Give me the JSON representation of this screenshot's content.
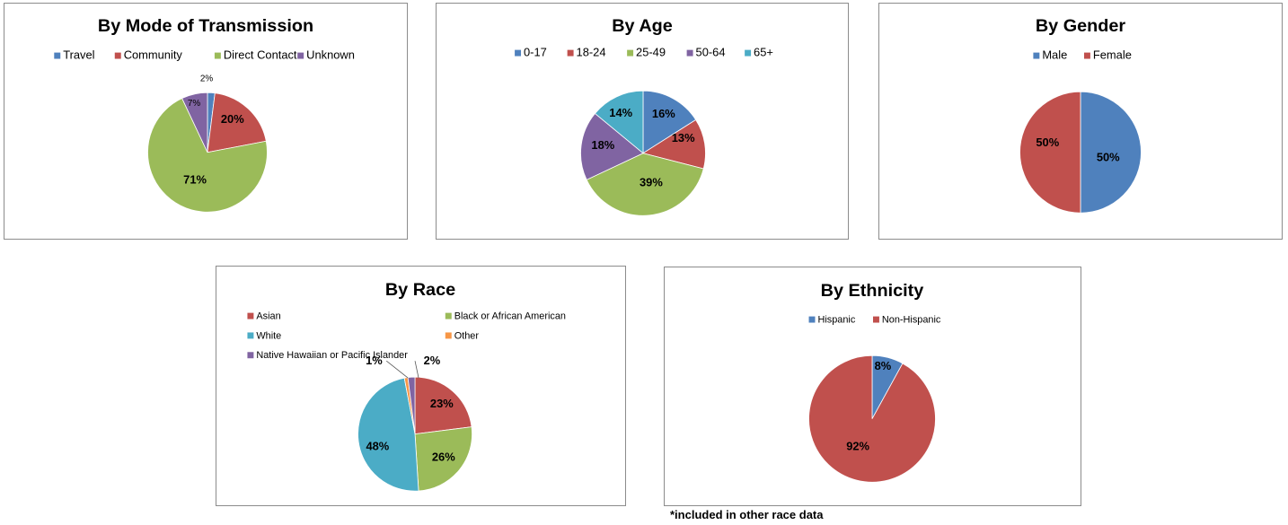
{
  "colors": {
    "blue": "#4F81BD",
    "red": "#C0504D",
    "green": "#9BBB59",
    "purple": "#8064A2",
    "teal": "#4BACC6",
    "orange": "#F79646"
  },
  "footnote": "*included in other race data",
  "chart_data": [
    {
      "type": "pie",
      "title": "By Mode of Transmission",
      "legend_position": "top",
      "slices": [
        {
          "label": "Travel",
          "value": 2,
          "display": "2%",
          "color": "#4F81BD"
        },
        {
          "label": "Community",
          "value": 20,
          "display": "20%",
          "color": "#C0504D"
        },
        {
          "label": "Direct Contact",
          "value": 71,
          "display": "71%",
          "color": "#9BBB59"
        },
        {
          "label": "Unknown",
          "value": 7,
          "display": "7%",
          "color": "#8064A2"
        }
      ]
    },
    {
      "type": "pie",
      "title": "By Age",
      "legend_position": "top",
      "slices": [
        {
          "label": "0-17",
          "value": 16,
          "display": "16%",
          "color": "#4F81BD"
        },
        {
          "label": "18-24",
          "value": 13,
          "display": "13%",
          "color": "#C0504D"
        },
        {
          "label": "25-49",
          "value": 39,
          "display": "39%",
          "color": "#9BBB59"
        },
        {
          "label": "50-64",
          "value": 18,
          "display": "18%",
          "color": "#8064A2"
        },
        {
          "label": "65+",
          "value": 14,
          "display": "14%",
          "color": "#4BACC6"
        }
      ]
    },
    {
      "type": "pie",
      "title": "By Gender",
      "legend_position": "top",
      "slices": [
        {
          "label": "Male",
          "value": 50,
          "display": "50%",
          "color": "#4F81BD"
        },
        {
          "label": "Female",
          "value": 50,
          "display": "50%",
          "color": "#C0504D"
        }
      ]
    },
    {
      "type": "pie",
      "title": "By Race",
      "legend_position": "top",
      "slices": [
        {
          "label": "Asian",
          "value": 23,
          "display": "23%",
          "color": "#C0504D"
        },
        {
          "label": "Black or African American",
          "value": 26,
          "display": "26%",
          "color": "#9BBB59"
        },
        {
          "label": "White",
          "value": 48,
          "display": "48%",
          "color": "#4BACC6"
        },
        {
          "label": "Other",
          "value": 1,
          "display": "1%",
          "color": "#F79646"
        },
        {
          "label": "Native Hawaiian or Pacific Islander",
          "value": 2,
          "display": "2%",
          "color": "#8064A2"
        }
      ]
    },
    {
      "type": "pie",
      "title": "By Ethnicity",
      "legend_position": "top",
      "slices": [
        {
          "label": "Hispanic",
          "value": 8,
          "display": "8%",
          "color": "#4F81BD"
        },
        {
          "label": "Non-Hispanic",
          "value": 92,
          "display": "92%",
          "color": "#C0504D"
        }
      ]
    }
  ]
}
